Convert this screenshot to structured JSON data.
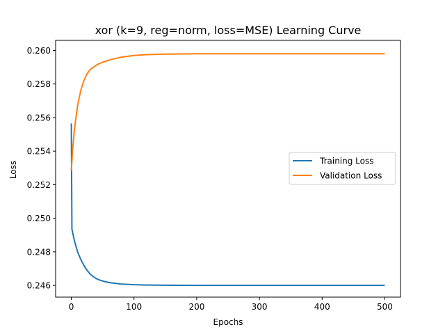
{
  "chart_data": {
    "type": "line",
    "title": "xor (k=9, reg=norm, loss=MSE) Learning Curve",
    "xlabel": "Epochs",
    "ylabel": "Loss",
    "xlim": [
      -25,
      525
    ],
    "ylim": [
      0.2453,
      0.2606
    ],
    "xticks": [
      0,
      100,
      200,
      300,
      400,
      500
    ],
    "yticks": [
      0.246,
      0.248,
      0.25,
      0.252,
      0.254,
      0.256,
      0.258,
      0.26
    ],
    "grid": false,
    "legend_position": "center-right",
    "series": [
      {
        "name": "Training Loss",
        "color": "#1f77b4",
        "x": [
          0,
          1,
          5,
          10,
          15,
          20,
          25,
          30,
          35,
          40,
          45,
          50,
          60,
          70,
          80,
          100,
          120,
          150,
          200,
          300,
          400,
          500
        ],
        "y": [
          0.25565,
          0.24935,
          0.24865,
          0.248,
          0.24755,
          0.2472,
          0.2469,
          0.24668,
          0.24652,
          0.2464,
          0.24632,
          0.24626,
          0.24617,
          0.24612,
          0.24608,
          0.24604,
          0.24602,
          0.24601,
          0.246,
          0.246,
          0.246,
          0.246
        ]
      },
      {
        "name": "Validation Loss",
        "color": "#ff7f0e",
        "x": [
          0,
          2,
          5,
          10,
          15,
          20,
          25,
          30,
          35,
          40,
          45,
          50,
          60,
          70,
          80,
          100,
          120,
          150,
          200,
          300,
          400,
          500
        ],
        "y": [
          0.25285,
          0.254,
          0.2553,
          0.2567,
          0.2576,
          0.2582,
          0.2586,
          0.25885,
          0.259,
          0.25912,
          0.25922,
          0.2593,
          0.25942,
          0.25952,
          0.2596,
          0.2597,
          0.25975,
          0.25978,
          0.2598,
          0.2598,
          0.2598,
          0.2598
        ]
      }
    ]
  }
}
